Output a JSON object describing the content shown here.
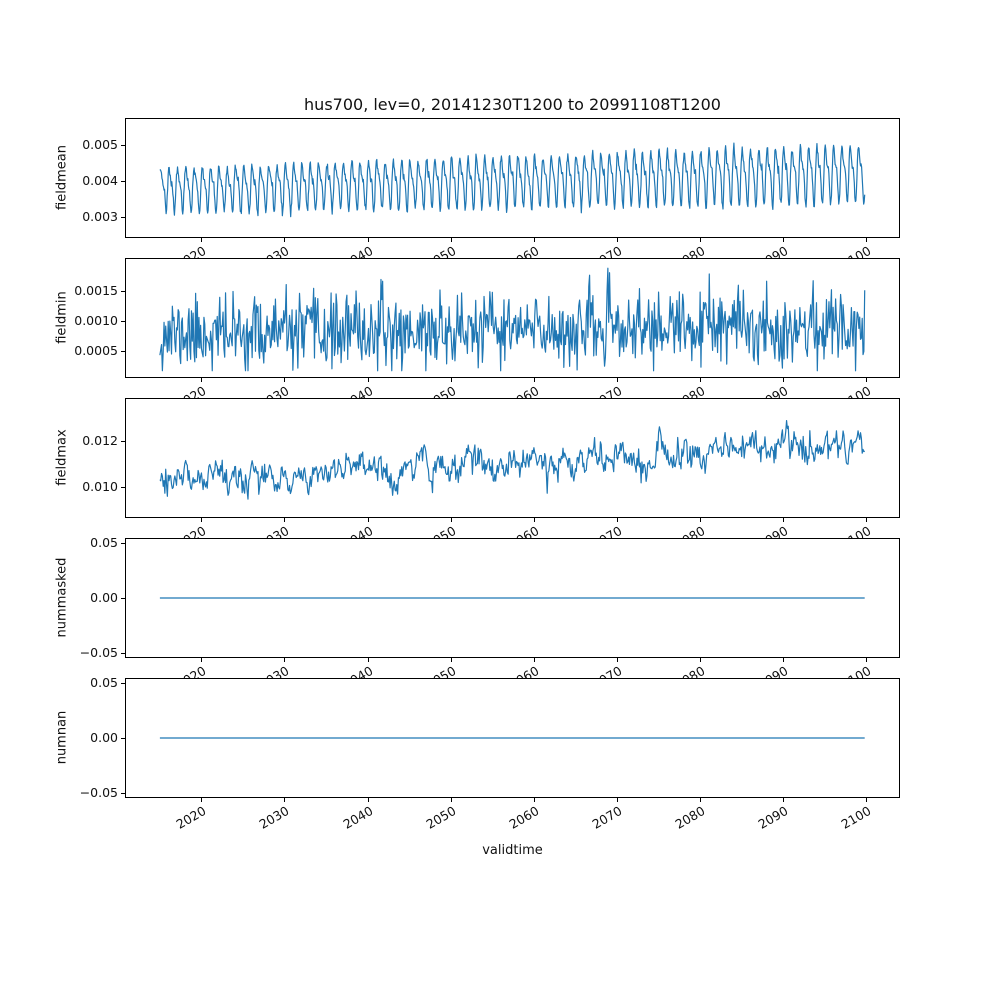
{
  "chart_data": {
    "type": "line",
    "title": "hus700, lev=0, 20141230T1200 to 20991108T1200",
    "xlabel": "validtime",
    "line_color": "#1f77b4",
    "x_range": [
      2015.0,
      2099.85
    ],
    "xlim": [
      2010.8,
      2104.1
    ],
    "xticks": [
      2020,
      2030,
      2040,
      2050,
      2060,
      2070,
      2080,
      2090,
      2100
    ],
    "xtick_labels": [
      "2020",
      "2030",
      "2040",
      "2050",
      "2060",
      "2070",
      "2080",
      "2090",
      "2100"
    ],
    "grid": false,
    "legend": "none",
    "subplots": [
      {
        "ylabel": "fieldmean",
        "ylim": [
          0.0024,
          0.00575
        ],
        "yticks": [
          0.003,
          0.004,
          0.005
        ],
        "ytick_labels": [
          "0.003",
          "0.004",
          "0.005"
        ],
        "series": {
          "kind": "seasonal",
          "base_start": 0.00378,
          "base_end": 0.00425,
          "amplitude": 0.00072,
          "amp_growth": 1.35,
          "noise": 6e-05,
          "samples_per_year": 16,
          "seed": 7,
          "clip_min": 0.00245,
          "clip_max": 0.0057
        }
      },
      {
        "ylabel": "fieldmin",
        "ylim": [
          6e-05,
          0.00205
        ],
        "yticks": [
          0.0005,
          0.001,
          0.0015
        ],
        "ytick_labels": [
          "0.0005",
          "0.0010",
          "0.0015"
        ],
        "series": {
          "kind": "noisy",
          "base_start": 0.00078,
          "base_end": 0.00092,
          "noise": 0.0003,
          "samples_per_year": 10,
          "seed": 11,
          "clip_min": 0.00018,
          "clip_max": 0.00188
        }
      },
      {
        "ylabel": "fieldmax",
        "ylim": [
          0.00865,
          0.0139
        ],
        "yticks": [
          0.01,
          0.012
        ],
        "ytick_labels": [
          "0.010",
          "0.012"
        ],
        "series": {
          "kind": "walk",
          "base_start": 0.01005,
          "base_end": 0.01205,
          "walk_scale": 0.00085,
          "jitter": 0.0002,
          "samples_per_year": 10,
          "seed": 13,
          "clip_min": 0.00905,
          "clip_max": 0.01345
        }
      },
      {
        "ylabel": "nummasked",
        "ylim": [
          -0.055,
          0.055
        ],
        "yticks": [
          0.05,
          0.0,
          -0.05
        ],
        "ytick_labels": [
          "0.05",
          "0.00",
          "−0.05"
        ],
        "series": {
          "kind": "constant",
          "value": 0.0
        }
      },
      {
        "ylabel": "numnan",
        "ylim": [
          -0.055,
          0.055
        ],
        "yticks": [
          0.05,
          0.0,
          -0.05
        ],
        "ytick_labels": [
          "0.05",
          "0.00",
          "−0.05"
        ],
        "series": {
          "kind": "constant",
          "value": 0.0
        }
      }
    ]
  }
}
